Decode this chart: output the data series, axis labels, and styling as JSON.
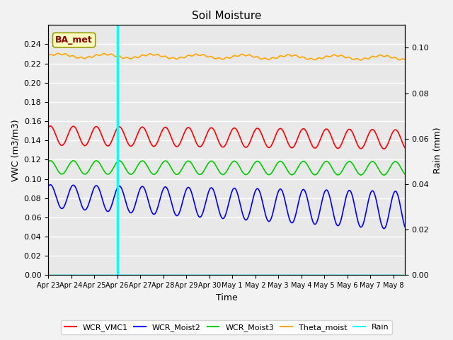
{
  "title": "Soil Moisture",
  "xlabel": "Time",
  "ylabel_left": "VWC (m3/m3)",
  "ylabel_right": "Rain (mm)",
  "ylim_left": [
    0.0,
    0.26
  ],
  "ylim_right": [
    0.0,
    0.11
  ],
  "yticks_left": [
    0.0,
    0.02,
    0.04,
    0.06,
    0.08,
    0.1,
    0.12,
    0.14,
    0.16,
    0.18,
    0.2,
    0.22,
    0.24
  ],
  "yticks_right": [
    0.0,
    0.02,
    0.04,
    0.06,
    0.08,
    0.1
  ],
  "annotation_label": "BA_met",
  "vline_day": 3.0,
  "xlim": [
    0,
    15.5
  ],
  "colors": {
    "WCR_VMC1": "#ff0000",
    "WCR_Moist2": "#0000ff",
    "WCR_Moist3": "#00cc00",
    "Theta_moist": "#ffa500",
    "Rain": "#00ffff",
    "background": "#e8e8e8",
    "grid": "#ffffff"
  },
  "legend_entries": [
    "WCR_VMC1",
    "WCR_Moist2",
    "WCR_Moist3",
    "Theta_moist",
    "Rain"
  ],
  "tick_labels": [
    "Apr 23",
    "Apr 24",
    "Apr 25",
    "Apr 26",
    "Apr 27",
    "Apr 28",
    "Apr 29",
    "Apr 30",
    "May 1",
    "May 2",
    "May 3",
    "May 4",
    "May 5",
    "May 6",
    "May 7",
    "May 8"
  ],
  "tick_positions": [
    0,
    1,
    2,
    3,
    4,
    5,
    6,
    7,
    8,
    9,
    10,
    11,
    12,
    13,
    14,
    15
  ]
}
